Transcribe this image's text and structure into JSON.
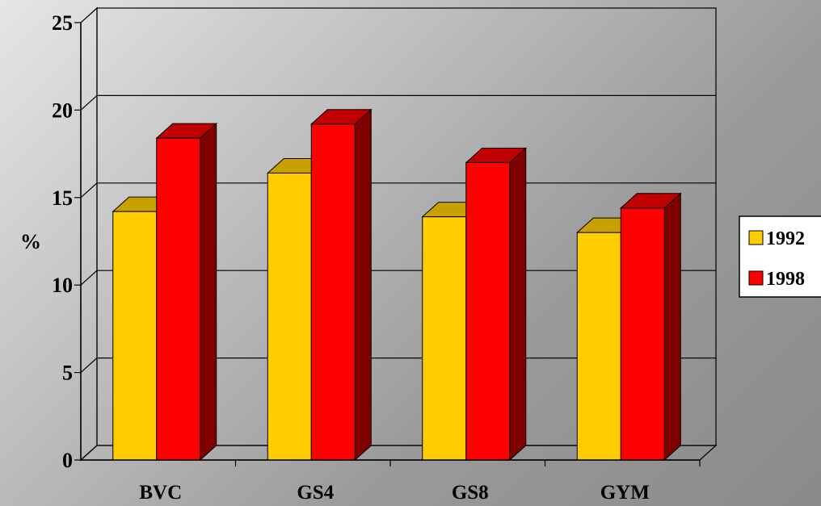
{
  "chart_data": {
    "type": "bar",
    "ylabel": "%",
    "ylim": [
      0,
      25
    ],
    "yticks": [
      0,
      5,
      10,
      15,
      20,
      25
    ],
    "grid": true,
    "legend_position": "right",
    "categories": [
      "BVC",
      "GS4",
      "GS8",
      "GYM"
    ],
    "series": [
      {
        "name": "1992",
        "color": "#ffcc00",
        "top_color": "#c8a000",
        "side_color": "#a88600",
        "values": [
          14.2,
          16.4,
          13.9,
          13.0
        ]
      },
      {
        "name": "1998",
        "color": "#ff0000",
        "top_color": "#c00000",
        "side_color": "#800000",
        "values": [
          18.4,
          19.2,
          17.0,
          14.4
        ]
      }
    ]
  }
}
